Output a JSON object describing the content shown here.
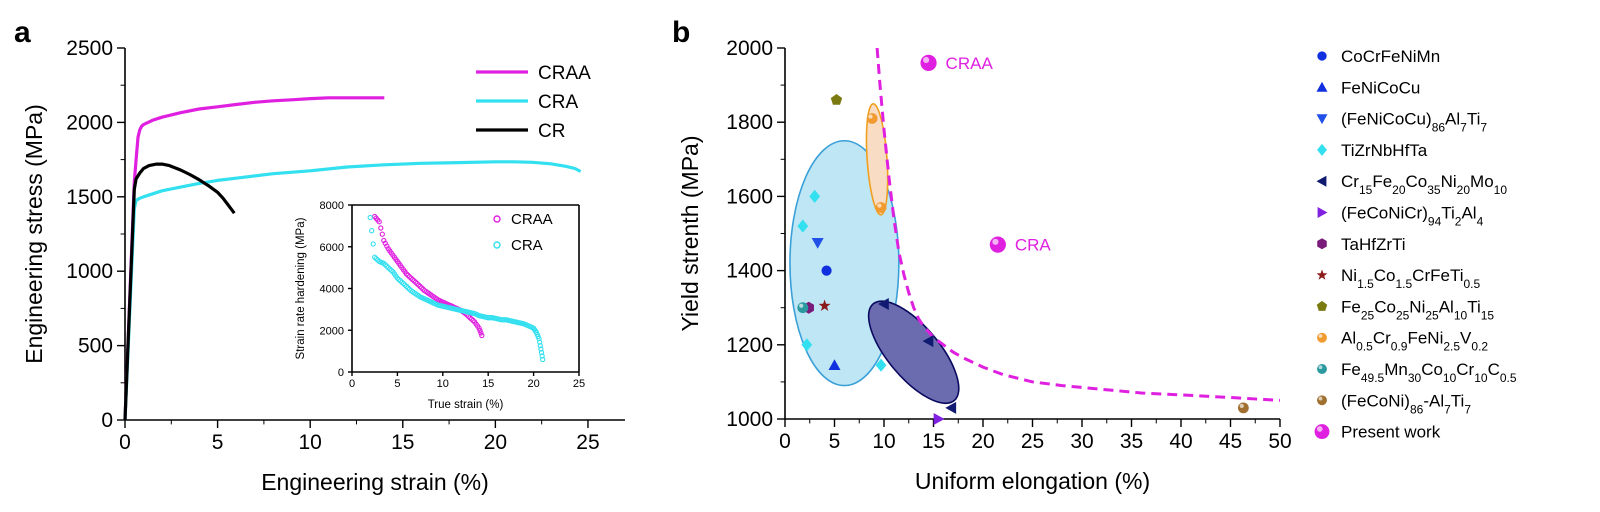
{
  "panels": {
    "a_letter": "a",
    "b_letter": "b"
  },
  "chart_data": [
    {
      "id": "a",
      "type": "line",
      "xlabel": "Engineering strain (%)",
      "ylabel": "Engineering stress (MPa)",
      "xlim": [
        0,
        27
      ],
      "ylim": [
        0,
        2500
      ],
      "xticks": [
        0,
        5,
        10,
        15,
        20,
        25
      ],
      "yticks": [
        0,
        500,
        1000,
        1500,
        2000,
        2500
      ],
      "legend_position": "top-right",
      "series": [
        {
          "name": "CRAA",
          "color": "#e020e0",
          "x": [
            0,
            0.5,
            0.6,
            0.7,
            0.8,
            0.9,
            1.0,
            1.5,
            2,
            3,
            4,
            5,
            6,
            7,
            8,
            9,
            10,
            11,
            12,
            13,
            14
          ],
          "y": [
            0,
            1600,
            1750,
            1900,
            1950,
            1975,
            1985,
            2015,
            2035,
            2065,
            2090,
            2105,
            2120,
            2135,
            2145,
            2152,
            2160,
            2165,
            2165,
            2165,
            2165
          ]
        },
        {
          "name": "CRA",
          "color": "#33e0f0",
          "x": [
            0,
            0.5,
            0.6,
            0.8,
            1,
            2,
            3,
            4,
            5,
            6,
            8,
            10,
            12,
            14,
            16,
            18,
            20,
            21,
            22,
            23,
            23.8,
            24.3,
            24.6
          ],
          "y": [
            0,
            1420,
            1475,
            1490,
            1500,
            1540,
            1565,
            1590,
            1610,
            1625,
            1655,
            1675,
            1700,
            1715,
            1725,
            1730,
            1735,
            1735,
            1732,
            1722,
            1705,
            1690,
            1670
          ]
        },
        {
          "name": "CR",
          "color": "#000000",
          "x": [
            0,
            0.5,
            0.6,
            0.8,
            1.0,
            1.3,
            1.7,
            2.0,
            2.4,
            3.0,
            3.5,
            4.0,
            4.5,
            5.0,
            5.3,
            5.6,
            5.9
          ],
          "y": [
            0,
            1550,
            1620,
            1660,
            1690,
            1710,
            1720,
            1720,
            1710,
            1680,
            1650,
            1615,
            1575,
            1530,
            1490,
            1440,
            1390
          ]
        }
      ]
    },
    {
      "id": "a-inset",
      "type": "scatter",
      "xlabel": "True strain (%)",
      "ylabel": "Strain rate hardening (MPa)",
      "xlim": [
        0,
        25
      ],
      "ylim": [
        0,
        8000
      ],
      "xticks": [
        0,
        5,
        10,
        15,
        20,
        25
      ],
      "yticks": [
        0,
        2000,
        4000,
        6000,
        8000
      ],
      "legend_position": "top-right",
      "series": [
        {
          "name": "CRAA",
          "color": "#e020e0",
          "x": [
            2.5,
            3.0,
            3.5,
            4.0,
            4.5,
            5.0,
            5.5,
            6.0,
            6.5,
            7.0,
            7.5,
            8.0,
            8.5,
            9.0,
            9.5,
            10.0,
            10.5,
            11.0,
            11.5,
            12.0,
            12.5,
            13.0,
            13.5,
            14.0,
            14.3
          ],
          "y": [
            7450,
            7200,
            6300,
            5900,
            5600,
            5300,
            5000,
            4700,
            4500,
            4300,
            4100,
            3900,
            3750,
            3600,
            3450,
            3350,
            3250,
            3150,
            3050,
            2950,
            2800,
            2600,
            2400,
            2100,
            1750
          ]
        },
        {
          "name": "CRA",
          "color": "#33e0f0",
          "x": [
            2.0,
            2.5,
            3.0,
            3.5,
            4.0,
            4.5,
            5.0,
            5.5,
            6.0,
            6.5,
            7.0,
            7.5,
            8.0,
            8.5,
            9.0,
            9.5,
            10.0,
            10.5,
            11.0,
            11.5,
            12.0,
            12.5,
            13.0,
            13.5,
            14.0,
            14.5,
            15.0,
            15.5,
            16.0,
            16.5,
            17.0,
            17.5,
            18.0,
            18.5,
            19.0,
            19.5,
            20.0,
            20.3,
            20.6,
            20.8,
            21.0
          ],
          "y": [
            7400,
            5500,
            5300,
            5200,
            5000,
            4800,
            4500,
            4300,
            4100,
            3900,
            3750,
            3600,
            3500,
            3400,
            3300,
            3200,
            3150,
            3100,
            3050,
            3000,
            2950,
            2900,
            2850,
            2800,
            2700,
            2650,
            2600,
            2600,
            2550,
            2500,
            2500,
            2450,
            2400,
            2350,
            2300,
            2200,
            2100,
            1900,
            1600,
            1100,
            600
          ]
        }
      ]
    },
    {
      "id": "b",
      "type": "scatter",
      "xlabel": "Uniform elongation (%)",
      "ylabel": "Yield strenth (MPa)",
      "xlim": [
        0,
        50
      ],
      "ylim": [
        1000,
        2000
      ],
      "xticks": [
        0,
        5,
        10,
        15,
        20,
        25,
        30,
        35,
        40,
        45,
        50
      ],
      "yticks": [
        1000,
        1200,
        1400,
        1600,
        1800,
        2000
      ],
      "legend_position": "right-outside",
      "series": [
        {
          "name": "CoCrFeNiMn",
          "legend": {
            "base": "CoCrFeNiMn",
            "subs": []
          },
          "marker": "circle",
          "color": "#1030e0",
          "points": [
            [
              4.2,
              1400
            ]
          ]
        },
        {
          "name": "FeNiCoCu",
          "legend": {
            "base": "FeNiCoCu",
            "subs": []
          },
          "marker": "triangle-up",
          "color": "#1030e0",
          "points": [
            [
              5.0,
              1145
            ]
          ]
        },
        {
          "name": "(FeNiCoCu)86Al7Ti7",
          "legend": {
            "parts": [
              [
                "(FeNiCoCu)",
                ""
              ],
              [
                "86",
                "sub"
              ],
              [
                "Al",
                ""
              ],
              [
                "7",
                "sub"
              ],
              [
                "Ti",
                ""
              ],
              [
                "7",
                "sub"
              ]
            ]
          },
          "marker": "triangle-down",
          "color": "#2050e8",
          "points": [
            [
              3.3,
              1475
            ]
          ]
        },
        {
          "name": "TiZrNbHfTa",
          "legend": {
            "parts": [
              [
                "TiZrNbHfTa",
                ""
              ]
            ]
          },
          "marker": "diamond",
          "color": "#33e0f0",
          "points": [
            [
              3.0,
              1600
            ],
            [
              1.8,
              1520
            ],
            [
              2.2,
              1200
            ],
            [
              9.7,
              1145
            ]
          ]
        },
        {
          "name": "Cr15Fe20Co35Ni20Mo10",
          "legend": {
            "parts": [
              [
                "Cr",
                ""
              ],
              [
                "15",
                "sub"
              ],
              [
                "Fe",
                ""
              ],
              [
                "20",
                "sub"
              ],
              [
                "Co",
                ""
              ],
              [
                "35",
                "sub"
              ],
              [
                "Ni",
                ""
              ],
              [
                "20",
                "sub"
              ],
              [
                "Mo",
                ""
              ],
              [
                "10",
                "sub"
              ]
            ]
          },
          "marker": "triangle-left",
          "color": "#101a70",
          "points": [
            [
              10.0,
              1310
            ],
            [
              14.5,
              1210
            ],
            [
              16.8,
              1030
            ]
          ]
        },
        {
          "name": "(FeCoNiCr)94Ti2Al4",
          "legend": {
            "parts": [
              [
                "(FeCoNiCr)",
                ""
              ],
              [
                "94",
                "sub"
              ],
              [
                "Ti",
                ""
              ],
              [
                "2",
                "sub"
              ],
              [
                "Al",
                ""
              ],
              [
                "4",
                "sub"
              ]
            ]
          },
          "marker": "triangle-right",
          "color": "#8020e0",
          "points": [
            [
              15.5,
              1000
            ]
          ]
        },
        {
          "name": "TaHfZrTi",
          "legend": {
            "parts": [
              [
                "TaHfZrTi",
                ""
              ]
            ]
          },
          "marker": "hexagon",
          "color": "#7a1a7a",
          "points": [
            [
              2.4,
              1300
            ]
          ]
        },
        {
          "name": "Ni1.5Co1.5CrFeTi0.5",
          "legend": {
            "parts": [
              [
                "Ni",
                ""
              ],
              [
                "1.5",
                "sub"
              ],
              [
                "Co",
                ""
              ],
              [
                "1.5",
                "sub"
              ],
              [
                "CrFeTi",
                ""
              ],
              [
                "0.5",
                "sub"
              ]
            ]
          },
          "marker": "star",
          "color": "#8a1a1a",
          "points": [
            [
              4.0,
              1305
            ]
          ]
        },
        {
          "name": "Fe25Co25Ni25Al10Ti15",
          "legend": {
            "parts": [
              [
                "Fe",
                ""
              ],
              [
                "25",
                "sub"
              ],
              [
                "Co",
                ""
              ],
              [
                "25",
                "sub"
              ],
              [
                "Ni",
                ""
              ],
              [
                "25",
                "sub"
              ],
              [
                "Al",
                ""
              ],
              [
                "10",
                "sub"
              ],
              [
                "Ti",
                ""
              ],
              [
                "15",
                "sub"
              ]
            ]
          },
          "marker": "pentagon",
          "color": "#7a7a10",
          "points": [
            [
              5.2,
              1860
            ]
          ]
        },
        {
          "name": "Al0.5Cr0.9FeNi2.5V0.2",
          "legend": {
            "parts": [
              [
                "Al",
                ""
              ],
              [
                "0.5",
                "sub"
              ],
              [
                "Cr",
                ""
              ],
              [
                "0.9",
                "sub"
              ],
              [
                "FeNi",
                ""
              ],
              [
                "2.5",
                "sub"
              ],
              [
                "V",
                ""
              ],
              [
                "0.2",
                "sub"
              ]
            ]
          },
          "marker": "sphere",
          "color": "#f09a30",
          "points": [
            [
              8.8,
              1810
            ],
            [
              9.7,
              1570
            ]
          ]
        },
        {
          "name": "Fe49.5Mn30Co10Cr10C0.5",
          "legend": {
            "parts": [
              [
                "Fe",
                ""
              ],
              [
                "49.5",
                "sub"
              ],
              [
                "Mn",
                ""
              ],
              [
                "30",
                "sub"
              ],
              [
                "Co",
                ""
              ],
              [
                "10",
                "sub"
              ],
              [
                "Cr",
                ""
              ],
              [
                "10",
                "sub"
              ],
              [
                "C",
                ""
              ],
              [
                "0.5",
                "sub"
              ]
            ]
          },
          "marker": "sphere",
          "color": "#2a9aa0",
          "points": [
            [
              1.8,
              1300
            ]
          ]
        },
        {
          "name": "(FeCoNi)86-Al7Ti7",
          "legend": {
            "parts": [
              [
                "(FeCoNi)",
                ""
              ],
              [
                "86",
                "sub"
              ],
              [
                "-Al",
                ""
              ],
              [
                "7",
                "sub"
              ],
              [
                "Ti",
                ""
              ],
              [
                "7",
                "sub"
              ]
            ]
          },
          "marker": "sphere",
          "color": "#a07030",
          "points": [
            [
              46.3,
              1030
            ]
          ]
        },
        {
          "name": "Present work",
          "legend": {
            "parts": [
              [
                "Present work",
                ""
              ]
            ]
          },
          "marker": "sphere-large",
          "color": "#e020e0",
          "points": [
            [
              14.5,
              1960,
              "CRAA"
            ],
            [
              21.5,
              1470,
              "CRA"
            ]
          ]
        }
      ],
      "dashed_curve": {
        "color": "#e020e0",
        "x": [
          9.3,
          9.6,
          10.0,
          10.5,
          11.0,
          11.5,
          12.0,
          12.5,
          13.0,
          13.5,
          14.0,
          15.0,
          16.0,
          17.0,
          18.0,
          20.0,
          22.0,
          25.0,
          28.0,
          32.0,
          36.0,
          40.0,
          45.0,
          50.0
        ],
        "y": [
          2000,
          1900,
          1780,
          1650,
          1540,
          1450,
          1390,
          1340,
          1300,
          1270,
          1250,
          1220,
          1200,
          1180,
          1165,
          1140,
          1120,
          1100,
          1090,
          1080,
          1070,
          1065,
          1058,
          1050
        ]
      },
      "ellipses": [
        {
          "name": "TiZrNbHfTa-region",
          "fill": "#bfe6f5",
          "stroke": "#3aa0d8",
          "cx": 6.0,
          "cy": 1420,
          "rx_data": 5.5,
          "ry_data": 330,
          "angle": 0
        },
        {
          "name": "Al-Cr-Fe-Ni-V-region",
          "fill": "#f8dcc4",
          "stroke": "#f0a020",
          "cx": 9.3,
          "cy": 1700,
          "rx_data": 1.0,
          "ry_data": 150,
          "angle": -4
        },
        {
          "name": "Cr-Fe-Co-Ni-Mo-region",
          "fill": "#6b6bb0",
          "stroke": "#0a0a60",
          "cx": 13.0,
          "cy": 1180,
          "rx_data": 2.6,
          "ry_data": 170,
          "angle": -40
        }
      ]
    }
  ]
}
